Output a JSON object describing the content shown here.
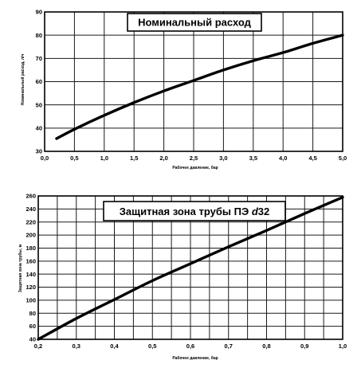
{
  "chart_data": [
    {
      "type": "line",
      "title": "Номинальный расход",
      "xlabel": "Рабочее давление, бар",
      "ylabel": "Номинальный расход, л/ч",
      "xlim": [
        0.0,
        5.0
      ],
      "ylim": [
        30,
        90
      ],
      "xticks": [
        "0,0",
        "0,5",
        "1,0",
        "1,5",
        "2,0",
        "2,5",
        "3,0",
        "3,5",
        "4,0",
        "4,5",
        "5,0"
      ],
      "yticks": [
        "30",
        "40",
        "50",
        "60",
        "70",
        "80",
        "90"
      ],
      "grid": true,
      "series": [
        {
          "x": [
            0.2,
            0.5,
            1.0,
            1.5,
            2.0,
            2.5,
            3.0,
            3.5,
            4.0,
            4.5,
            5.0
          ],
          "values": [
            35.5,
            39.5,
            45.5,
            51.0,
            56.0,
            60.5,
            65.0,
            69.0,
            72.5,
            76.5,
            80.0
          ]
        }
      ]
    },
    {
      "type": "line",
      "title_main": "Защитная зона трубы ПЭ ",
      "title_italic": "d",
      "title_tail": "32",
      "xlabel": "Рабочее давление, бар",
      "ylabel": "Защитная зона трубы, м",
      "xlim": [
        0.2,
        1.0
      ],
      "ylim": [
        40,
        260
      ],
      "xticks": [
        "0,2",
        "0,3",
        "0,4",
        "0,5",
        "0,6",
        "0,7",
        "0,8",
        "0,9",
        "1,0"
      ],
      "yticks": [
        "40",
        "60",
        "80",
        "100",
        "120",
        "140",
        "160",
        "180",
        "200",
        "220",
        "240",
        "260"
      ],
      "grid": true,
      "series": [
        {
          "x": [
            0.2,
            0.3,
            0.4,
            0.5,
            0.6,
            0.7,
            0.8,
            0.9,
            1.0
          ],
          "values": [
            40,
            72,
            101,
            130,
            156,
            182,
            207,
            233,
            258
          ]
        }
      ]
    }
  ]
}
